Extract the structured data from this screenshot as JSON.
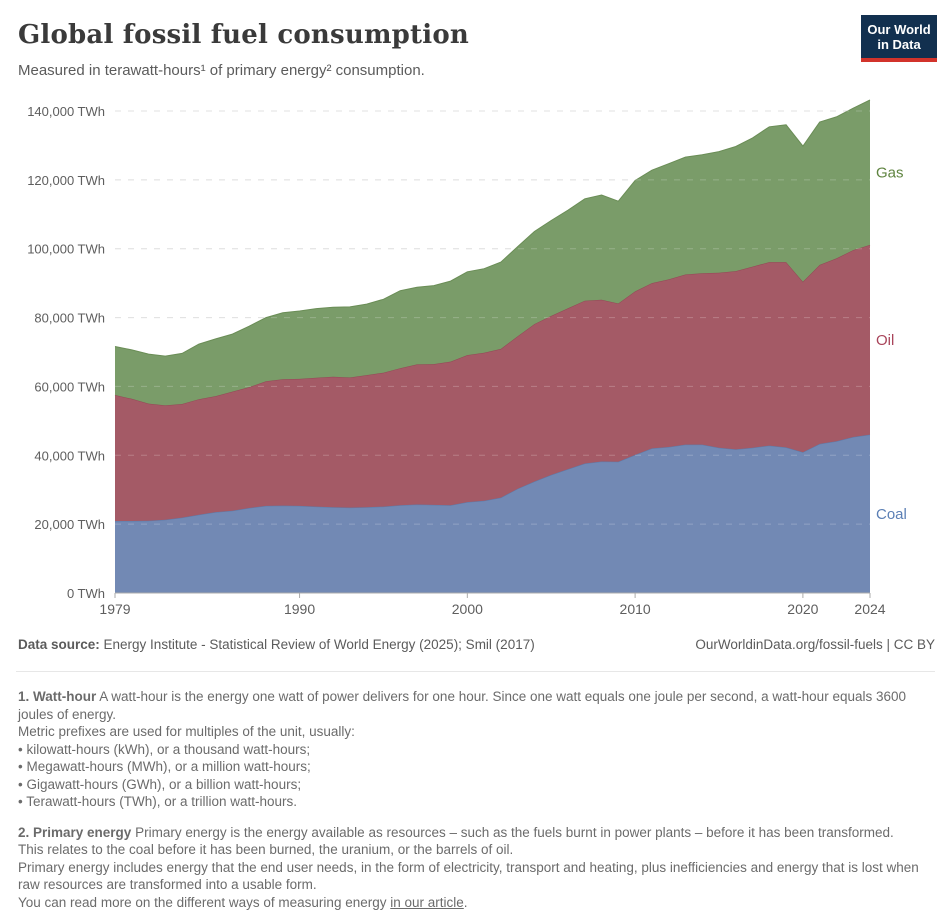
{
  "header": {
    "title": "Global fossil fuel consumption",
    "subtitle": "Measured in terawatt-hours¹ of primary energy² consumption.",
    "logo_line1": "Our World",
    "logo_line2": "in Data"
  },
  "chart_data": {
    "type": "area",
    "stacked": true,
    "title": "Global fossil fuel consumption",
    "unit": "TWh",
    "grid": "dashed-horizontal",
    "legend_position": "right-edge-labels",
    "ylim": [
      0,
      140000
    ],
    "yticks": [
      {
        "v": 0,
        "label": "0 TWh"
      },
      {
        "v": 20000,
        "label": "20,000 TWh"
      },
      {
        "v": 40000,
        "label": "40,000 TWh"
      },
      {
        "v": 60000,
        "label": "60,000 TWh"
      },
      {
        "v": 80000,
        "label": "80,000 TWh"
      },
      {
        "v": 100000,
        "label": "100,000 TWh"
      },
      {
        "v": 120000,
        "label": "120,000 TWh"
      },
      {
        "v": 140000,
        "label": "140,000 TWh"
      }
    ],
    "xticks": [
      1979,
      1990,
      2000,
      2010,
      2020,
      2024
    ],
    "years": [
      1979,
      1980,
      1981,
      1982,
      1983,
      1984,
      1985,
      1986,
      1987,
      1988,
      1989,
      1990,
      1991,
      1992,
      1993,
      1994,
      1995,
      1996,
      1997,
      1998,
      1999,
      2000,
      2001,
      2002,
      2003,
      2004,
      2005,
      2006,
      2007,
      2008,
      2009,
      2010,
      2011,
      2012,
      2013,
      2014,
      2015,
      2016,
      2017,
      2018,
      2019,
      2020,
      2021,
      2022,
      2023,
      2024
    ],
    "series": [
      {
        "name": "Coal",
        "color": "#7289b4",
        "stroke": "#5d7aa8",
        "label_color": "#5b7fb5",
        "values": [
          20900,
          20900,
          21000,
          21300,
          21900,
          22700,
          23500,
          23900,
          24700,
          25300,
          25400,
          25300,
          25100,
          24900,
          24800,
          24900,
          25100,
          25500,
          25700,
          25600,
          25500,
          26400,
          26800,
          27700,
          30300,
          32400,
          34300,
          36000,
          37600,
          38200,
          38100,
          40100,
          42000,
          42400,
          43100,
          43100,
          42200,
          41700,
          42200,
          42800,
          42300,
          40900,
          43300,
          44100,
          45300,
          46000
        ]
      },
      {
        "name": "Oil",
        "color": "#a45a66",
        "stroke": "#934855",
        "label_color": "#a9445a",
        "values": [
          36600,
          35500,
          34000,
          33200,
          33000,
          33600,
          33700,
          34600,
          35100,
          36200,
          36700,
          36900,
          37400,
          37900,
          37800,
          38400,
          38900,
          39800,
          40700,
          40900,
          41700,
          42700,
          43000,
          43200,
          44300,
          45700,
          46200,
          46700,
          47300,
          47000,
          46000,
          47500,
          48000,
          48700,
          49400,
          49800,
          50800,
          51800,
          52600,
          53300,
          53800,
          49500,
          52000,
          53100,
          54300,
          55100
        ]
      },
      {
        "name": "Gas",
        "color": "#7a9c69",
        "stroke": "#6a8d56",
        "label_color": "#5f8440",
        "values": [
          14100,
          14200,
          14400,
          14300,
          14700,
          16000,
          16600,
          16700,
          17700,
          18500,
          19300,
          19700,
          20100,
          20200,
          20500,
          20600,
          21300,
          22500,
          22400,
          22800,
          23400,
          24200,
          24400,
          25200,
          26000,
          26900,
          27700,
          28500,
          29600,
          30400,
          29700,
          32200,
          32800,
          33600,
          34100,
          34400,
          35200,
          36200,
          37400,
          39300,
          39900,
          39400,
          41500,
          41100,
          41200,
          42100
        ]
      }
    ]
  },
  "source": {
    "label": "Data source:",
    "text": " Energy Institute - Statistical Review of World Energy (2025); Smil (2017)",
    "attribution": "OurWorldinData.org/fossil-fuels | CC BY"
  },
  "footnotes": {
    "fn1": {
      "lead": "1. Watt-hour",
      "body": " A watt-hour is the energy one watt of power delivers for one hour. Since one watt equals one joule per second, a watt-hour equals 3600 joules of energy.",
      "line2": "Metric prefixes are used for multiples of the unit, usually:",
      "bullets": [
        "• kilowatt-hours (kWh), or a thousand watt-hours;",
        "• Megawatt-hours (MWh), or a million watt-hours;",
        "• Gigawatt-hours (GWh), or a billion watt-hours;",
        "• Terawatt-hours (TWh), or a trillion watt-hours."
      ]
    },
    "fn2": {
      "lead": "2. Primary energy",
      "body": " Primary energy is the energy available as resources – such as the fuels burnt in power plants – before it has been transformed.",
      "line2": "This relates to the coal before it has been burned, the uranium, or the barrels of oil.",
      "line3": "Primary energy includes energy that the end user needs, in the form of electricity, transport and heating, plus inefficiencies and energy that is lost when raw resources are transformed into a usable form.",
      "line4_prefix": "You can read more on the different ways of measuring energy ",
      "link_text": "in our article",
      "line4_suffix": "."
    }
  }
}
